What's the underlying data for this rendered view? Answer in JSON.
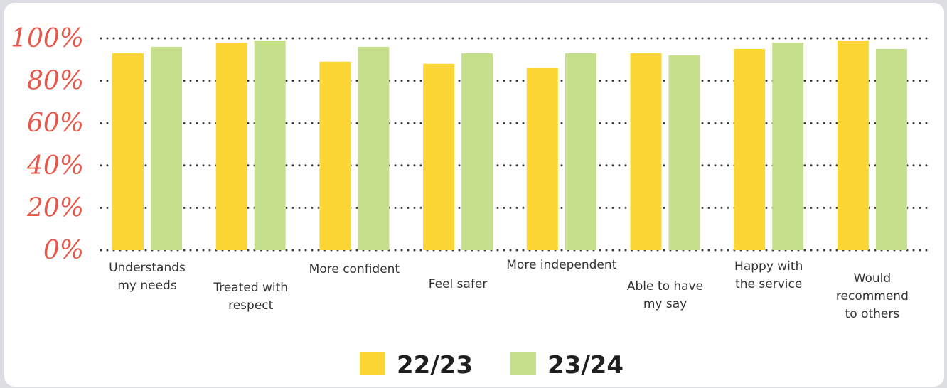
{
  "chart_data": {
    "type": "bar",
    "categories": [
      [
        "Understands",
        "my needs"
      ],
      [
        "Treated with",
        "respect"
      ],
      [
        "More confident"
      ],
      [
        "Feel safer"
      ],
      [
        "More independent"
      ],
      [
        "Able to have",
        "my say"
      ],
      [
        "Happy with",
        "the service"
      ],
      [
        "Would",
        "recommend",
        "to others"
      ]
    ],
    "series": [
      {
        "name": "22/23",
        "color": "#fcd634",
        "values": [
          93,
          98,
          89,
          88,
          86,
          93,
          95,
          99
        ]
      },
      {
        "name": "23/24",
        "color": "#c6df8c",
        "values": [
          96,
          99,
          96,
          93,
          93,
          92,
          98,
          95
        ]
      }
    ],
    "yticks": [
      "0%",
      "20%",
      "40%",
      "60%",
      "80%",
      "100%"
    ],
    "ylim": [
      0,
      100
    ],
    "grid": true,
    "legend_position": "bottom-center"
  }
}
